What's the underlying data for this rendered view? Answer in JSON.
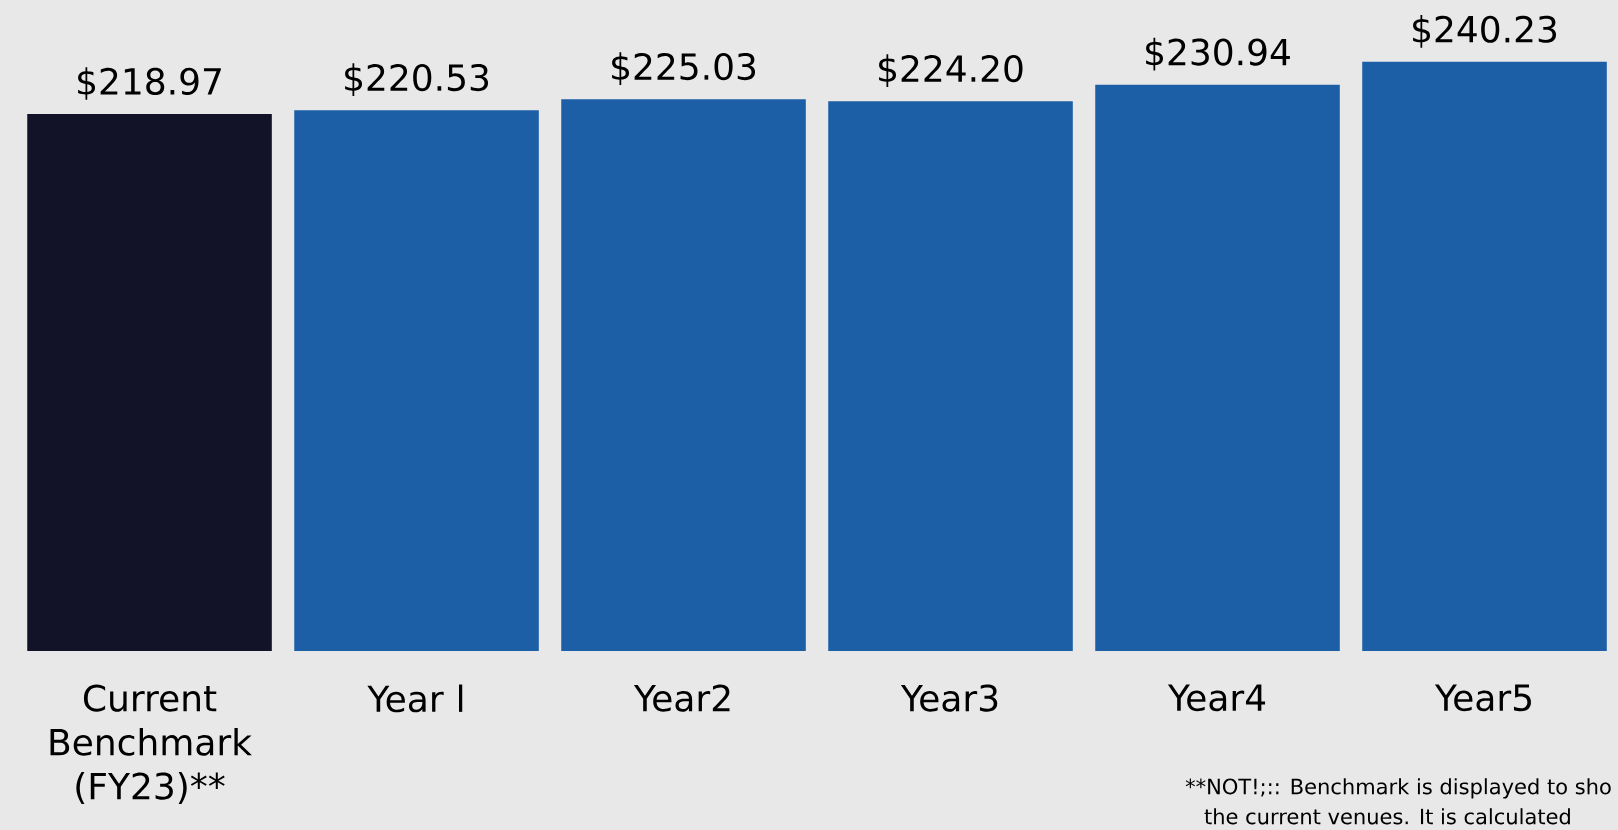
{
  "chart_data": {
    "type": "bar",
    "categories": [
      "Current Benchmark (FY23)**",
      "Year l",
      "Year2",
      "Year3",
      "Year4",
      "Year5"
    ],
    "values": [
      218.97,
      220.53,
      225.03,
      224.2,
      230.94,
      240.23
    ],
    "colors": [
      "#121229",
      "#1c5fa6",
      "#1c5fa6",
      "#1c5fa6",
      "#1c5fa6",
      "#1c5fa6"
    ],
    "value_labels": [
      "$218.97",
      "$220.53",
      "$225.03",
      "$224.20",
      "$230.94",
      "$240.23"
    ],
    "annotations": [
      "**NOT!;:: Benchmark is displayed to sho",
      "the current venues. It is calculated"
    ]
  }
}
